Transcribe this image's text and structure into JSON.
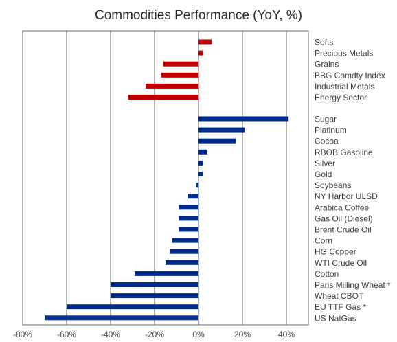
{
  "chart_data": {
    "type": "bar",
    "orientation": "horizontal",
    "title": "Commodities Performance (YoY, %)",
    "xlabel": "",
    "ylabel": "",
    "xlim": [
      -80,
      50
    ],
    "xticks": [
      -80,
      -60,
      -40,
      -20,
      0,
      20,
      40
    ],
    "tick_labels": [
      "-80%",
      "-60%",
      "-40%",
      "-20%",
      "0%",
      "20%",
      "40%"
    ],
    "grid": "vertical",
    "legend": "none",
    "groups": [
      {
        "color": "#c00000",
        "categories": [
          "Softs",
          "Precious Metals",
          "Grains",
          "BBG Comdty Index",
          "Industrial Metals",
          "Energy Sector"
        ],
        "values": [
          6,
          2,
          -16,
          -17,
          -24,
          -32
        ]
      },
      {
        "color": "#002c8f",
        "categories": [
          "Sugar",
          "Platinum",
          "Cocoa",
          "RBOB Gasoline",
          "Silver",
          "Gold",
          "Soybeans",
          "NY Harbor ULSD",
          "Arabica Coffee",
          "Gas Oil (Diesel)",
          "Brent Crude Oil",
          "Corn",
          "HG Copper",
          "WTI Crude Oil",
          "Cotton",
          "Paris Milling Wheat *",
          "Wheat CBOT",
          "EU TTF Gas *",
          "US NatGas"
        ],
        "values": [
          41,
          21,
          17,
          4,
          2,
          2,
          -1,
          -5,
          -9,
          -9,
          -9,
          -12,
          -13,
          -15,
          -29,
          -40,
          -40,
          -60,
          -70
        ]
      }
    ]
  }
}
